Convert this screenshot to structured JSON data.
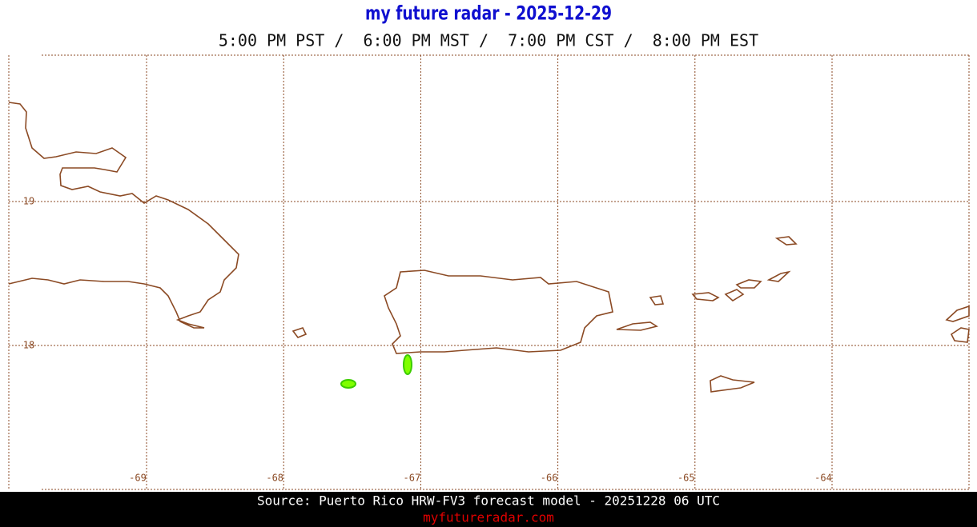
{
  "header": {
    "title": "my future radar - 2025-12-29",
    "times": "5:00 PM PST /  6:00 PM MST /  7:00 PM CST /  8:00 PM EST"
  },
  "map": {
    "lon_ticks": [
      -69,
      -68,
      -67,
      -66,
      -65,
      -64
    ],
    "lat_ticks": [
      19,
      18
    ]
  },
  "footer": {
    "source": "Source: Puerto Rico HRW-FV3 forecast model - 20251228 06 UTC",
    "site": "myfutureradar.com"
  }
}
